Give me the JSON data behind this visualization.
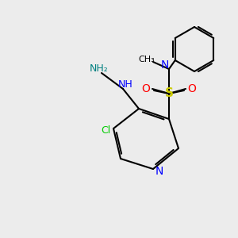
{
  "bg_color": "#ececec",
  "bond_color": "#000000",
  "bond_lw": 1.5,
  "atom_colors": {
    "N": "#0000ff",
    "O": "#ff0000",
    "S": "#cccc00",
    "Cl": "#00cc00",
    "NH": "#0000ff",
    "NH2": "#008080",
    "C": "#000000"
  },
  "font_size": 9,
  "font_size_small": 8
}
